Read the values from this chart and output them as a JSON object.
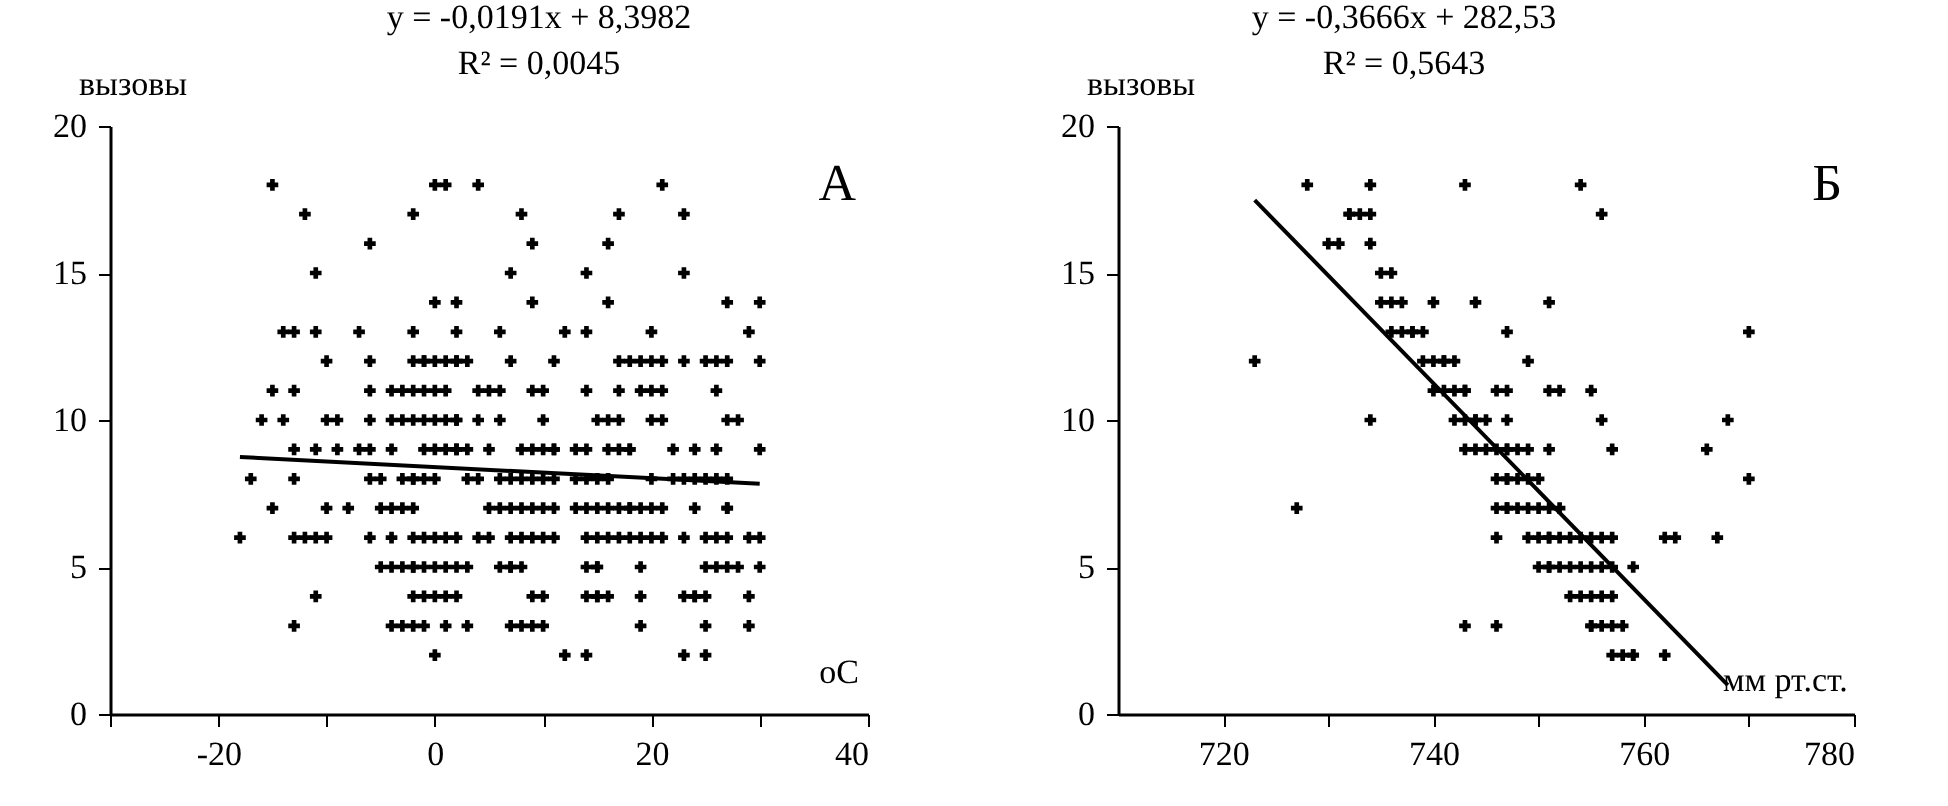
{
  "chart_data": [
    {
      "type": "scatter",
      "title": "А",
      "xlabel": "oC",
      "ylabel": "вызовы",
      "annotations": [
        "y = -0,0191x + 8,3982",
        "R² = 0,0045"
      ],
      "marker": "cross",
      "grid": false,
      "xlim": [
        -30,
        40
      ],
      "xticks": [
        {
          "value": -30,
          "label": null
        },
        -20,
        {
          "value": -10,
          "label": null
        },
        0,
        {
          "value": 10,
          "label": null
        },
        20,
        {
          "value": 30,
          "label": null
        },
        40
      ],
      "ylim": [
        0,
        20
      ],
      "yticks": [
        0,
        5,
        10,
        15,
        20
      ],
      "series": [
        {
          "color": "#000000",
          "x": [
            -15,
            0,
            1,
            4,
            21,
            -12,
            -2,
            8,
            17,
            23,
            -6,
            9,
            16,
            -11,
            7,
            14,
            23,
            0,
            2,
            9,
            16,
            27,
            30,
            -14,
            -13,
            -11,
            -7,
            -2,
            2,
            6,
            12,
            14,
            20,
            29,
            -10,
            -6,
            -2,
            -1,
            -1,
            0,
            1,
            2,
            2,
            3,
            7,
            11,
            17,
            18,
            19,
            20,
            21,
            23,
            25,
            26,
            27,
            30,
            -15,
            -13,
            -6,
            -4,
            -3,
            -2,
            -1,
            0,
            1,
            4,
            5,
            6,
            9,
            10,
            14,
            17,
            19,
            20,
            21,
            26,
            -16,
            -14,
            -10,
            -9,
            -6,
            -4,
            -3,
            -2,
            -1,
            0,
            1,
            2,
            2,
            4,
            6,
            10,
            15,
            16,
            17,
            20,
            21,
            27,
            28,
            -13,
            -11,
            -9,
            -7,
            -6,
            -4,
            -1,
            0,
            1,
            2,
            2,
            3,
            5,
            8,
            9,
            10,
            11,
            11,
            13,
            14,
            16,
            17,
            18,
            18,
            22,
            24,
            26,
            30,
            -17,
            -13,
            -6,
            -5,
            -3,
            -2,
            -2,
            -1,
            0,
            3,
            4,
            6,
            7,
            8,
            9,
            10,
            11,
            13,
            14,
            15,
            16,
            20,
            22,
            23,
            24,
            25,
            26,
            27,
            -15,
            -10,
            -8,
            -5,
            -4,
            -3,
            -2,
            5,
            6,
            7,
            8,
            9,
            10,
            11,
            13,
            14,
            15,
            16,
            17,
            18,
            18,
            19,
            20,
            21,
            24,
            27,
            27,
            -18,
            -13,
            -12,
            -11,
            -10,
            -6,
            -4,
            -2,
            -1,
            0,
            1,
            2,
            4,
            5,
            7,
            8,
            9,
            10,
            11,
            14,
            15,
            16,
            17,
            18,
            19,
            20,
            21,
            23,
            25,
            26,
            27,
            29,
            30,
            -5,
            -4,
            -3,
            -2,
            -2,
            -1,
            0,
            1,
            2,
            3,
            6,
            7,
            7,
            8,
            14,
            15,
            15,
            19,
            25,
            26,
            27,
            28,
            30,
            -11,
            -2,
            -1,
            0,
            1,
            2,
            9,
            10,
            14,
            15,
            15,
            16,
            19,
            23,
            24,
            24,
            25,
            29,
            -13,
            -4,
            -3,
            -2,
            -1,
            1,
            3,
            7,
            8,
            9,
            10,
            19,
            25,
            29,
            0,
            12,
            14,
            23,
            25
          ],
          "values": [
            18,
            18,
            18,
            18,
            18,
            17,
            17,
            17,
            17,
            17,
            16,
            16,
            16,
            15,
            15,
            15,
            15,
            14,
            14,
            14,
            14,
            14,
            14,
            13,
            13,
            13,
            13,
            13,
            13,
            13,
            13,
            13,
            13,
            13,
            12,
            12,
            12,
            12,
            12,
            12,
            12,
            12,
            12,
            12,
            12,
            12,
            12,
            12,
            12,
            12,
            12,
            12,
            12,
            12,
            12,
            12,
            11,
            11,
            11,
            11,
            11,
            11,
            11,
            11,
            11,
            11,
            11,
            11,
            11,
            11,
            11,
            11,
            11,
            11,
            11,
            11,
            10,
            10,
            10,
            10,
            10,
            10,
            10,
            10,
            10,
            10,
            10,
            10,
            10,
            10,
            10,
            10,
            10,
            10,
            10,
            10,
            10,
            10,
            10,
            9,
            9,
            9,
            9,
            9,
            9,
            9,
            9,
            9,
            9,
            9,
            9,
            9,
            9,
            9,
            9,
            9,
            9,
            9,
            9,
            9,
            9,
            9,
            9,
            9,
            9,
            9,
            9,
            8,
            8,
            8,
            8,
            8,
            8,
            8,
            8,
            8,
            8,
            8,
            8,
            8,
            8,
            8,
            8,
            8,
            8,
            8,
            8,
            8,
            8,
            8,
            8,
            8,
            8,
            8,
            8,
            7,
            7,
            7,
            7,
            7,
            7,
            7,
            7,
            7,
            7,
            7,
            7,
            7,
            7,
            7,
            7,
            7,
            7,
            7,
            7,
            7,
            7,
            7,
            7,
            7,
            7,
            7,
            6,
            6,
            6,
            6,
            6,
            6,
            6,
            6,
            6,
            6,
            6,
            6,
            6,
            6,
            6,
            6,
            6,
            6,
            6,
            6,
            6,
            6,
            6,
            6,
            6,
            6,
            6,
            6,
            6,
            6,
            6,
            6,
            6,
            5,
            5,
            5,
            5,
            5,
            5,
            5,
            5,
            5,
            5,
            5,
            5,
            5,
            5,
            5,
            5,
            5,
            5,
            5,
            5,
            5,
            5,
            5,
            4,
            4,
            4,
            4,
            4,
            4,
            4,
            4,
            4,
            4,
            4,
            4,
            4,
            4,
            4,
            4,
            4,
            4,
            3,
            3,
            3,
            3,
            3,
            3,
            3,
            3,
            3,
            3,
            3,
            3,
            3,
            3,
            2,
            2,
            2,
            2,
            2
          ]
        },
        {
          "type": "line",
          "marker": "none",
          "color": "#000000",
          "x": [
            -18,
            30
          ],
          "values": [
            8.74,
            7.83
          ]
        }
      ]
    },
    {
      "type": "scatter",
      "title": "Б",
      "xlabel": "мм рт.ст.",
      "ylabel": "вызовы",
      "annotations": [
        "y = -0,3666x + 282,53",
        "R² = 0,5643"
      ],
      "marker": "cross",
      "grid": false,
      "xlim": [
        710,
        780
      ],
      "xticks": [
        720,
        {
          "value": 730,
          "label": null
        },
        740,
        {
          "value": 750,
          "label": null
        },
        760,
        {
          "value": 770,
          "label": null
        },
        780
      ],
      "ylim": [
        0,
        20
      ],
      "yticks": [
        0,
        5,
        10,
        15,
        20
      ],
      "series": [
        {
          "color": "#000000",
          "x": [
            728,
            734,
            743,
            754,
            732,
            732,
            733,
            734,
            756,
            730,
            731,
            734,
            735,
            736,
            735,
            736,
            737,
            740,
            744,
            751,
            736,
            737,
            738,
            738,
            739,
            747,
            770,
            723,
            739,
            740,
            741,
            741,
            742,
            749,
            740,
            741,
            742,
            743,
            743,
            746,
            747,
            751,
            752,
            755,
            734,
            742,
            743,
            744,
            744,
            745,
            747,
            756,
            768,
            743,
            744,
            745,
            746,
            747,
            747,
            748,
            749,
            751,
            757,
            766,
            746,
            747,
            747,
            748,
            749,
            750,
            770,
            727,
            746,
            747,
            747,
            748,
            749,
            750,
            751,
            752,
            746,
            749,
            750,
            751,
            751,
            752,
            753,
            754,
            755,
            756,
            757,
            762,
            763,
            767,
            750,
            751,
            751,
            752,
            753,
            754,
            755,
            756,
            757,
            759,
            753,
            754,
            755,
            756,
            757,
            743,
            746,
            755,
            755,
            756,
            757,
            758,
            757,
            758,
            759,
            759,
            762
          ],
          "values": [
            18,
            18,
            18,
            18,
            17,
            17,
            17,
            17,
            17,
            16,
            16,
            16,
            15,
            15,
            14,
            14,
            14,
            14,
            14,
            14,
            13,
            13,
            13,
            13,
            13,
            13,
            13,
            12,
            12,
            12,
            12,
            12,
            12,
            12,
            11,
            11,
            11,
            11,
            11,
            11,
            11,
            11,
            11,
            11,
            10,
            10,
            10,
            10,
            10,
            10,
            10,
            10,
            10,
            9,
            9,
            9,
            9,
            9,
            9,
            9,
            9,
            9,
            9,
            9,
            8,
            8,
            8,
            8,
            8,
            8,
            8,
            7,
            7,
            7,
            7,
            7,
            7,
            7,
            7,
            7,
            6,
            6,
            6,
            6,
            6,
            6,
            6,
            6,
            6,
            6,
            6,
            6,
            6,
            6,
            5,
            5,
            5,
            5,
            5,
            5,
            5,
            5,
            5,
            5,
            4,
            4,
            4,
            4,
            4,
            3,
            3,
            3,
            3,
            3,
            3,
            3,
            2,
            2,
            2,
            2,
            2
          ]
        },
        {
          "type": "line",
          "marker": "none",
          "color": "#000000",
          "x": [
            723,
            768
          ],
          "values": [
            17.48,
            0.98
          ]
        }
      ]
    }
  ]
}
